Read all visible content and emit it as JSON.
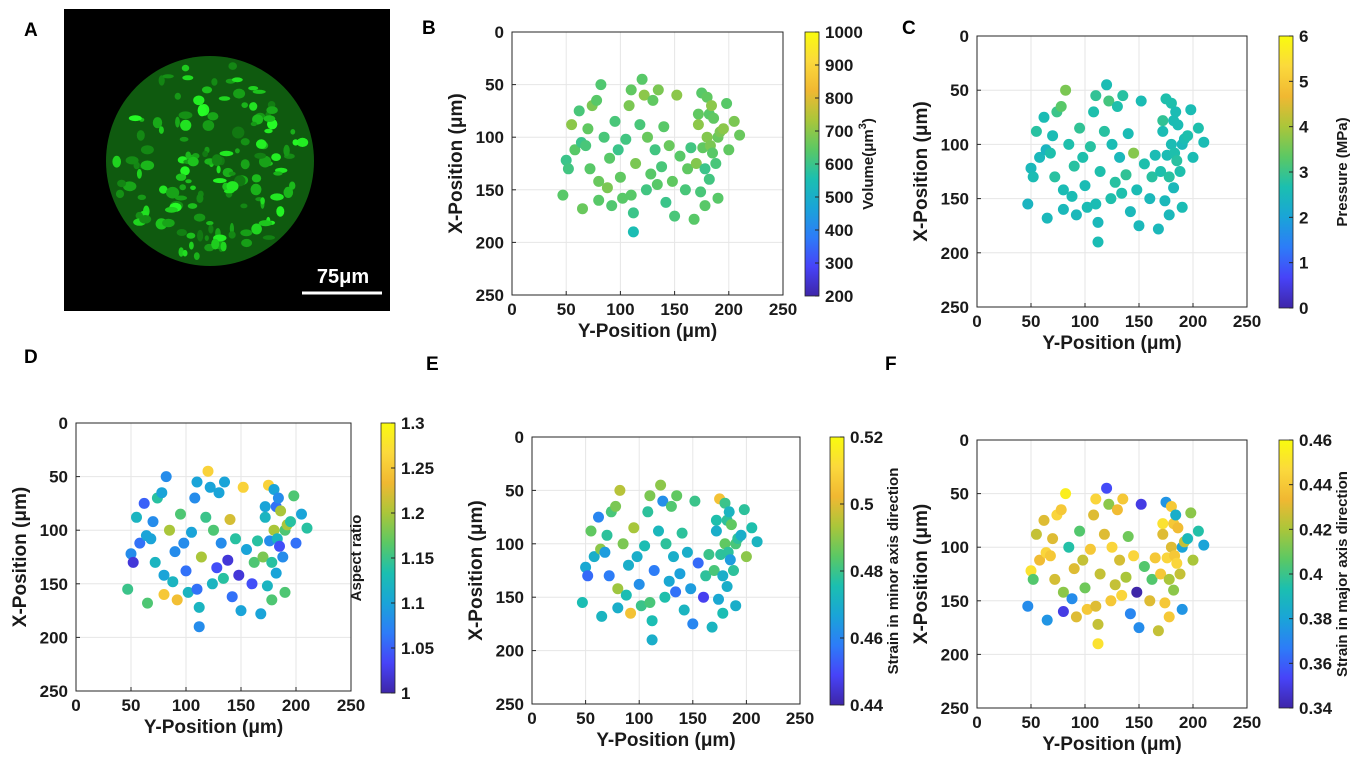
{
  "panel_labels": {
    "A": "A",
    "B": "B",
    "C": "C",
    "D": "D",
    "E": "E",
    "F": "F"
  },
  "micrograph": {
    "scale_bar_label": "75μm",
    "background": "#000000",
    "cell_color": "#22e022"
  },
  "colormap": [
    "#3e26a8",
    "#4743f8",
    "#2d7cf8",
    "#1aa4d8",
    "#1bbfb0",
    "#5bc864",
    "#aac63a",
    "#f0b832",
    "#fbd93c",
    "#f9fb0e"
  ],
  "cell_positions": {
    "y": [
      47,
      50,
      52,
      55,
      58,
      62,
      64,
      65,
      68,
      70,
      72,
      74,
      78,
      80,
      80,
      82,
      85,
      88,
      90,
      92,
      95,
      98,
      100,
      102,
      105,
      108,
      110,
      110,
      112,
      112,
      114,
      118,
      120,
      122,
      124,
      125,
      128,
      130,
      132,
      134,
      135,
      138,
      140,
      142,
      145,
      148,
      150,
      152,
      155,
      160,
      162,
      165,
      168,
      170,
      172,
      172,
      174,
      175,
      176,
      178,
      178,
      180,
      180,
      182,
      182,
      183,
      184,
      185,
      186,
      188,
      190,
      190,
      192,
      195,
      198,
      200,
      205,
      210
    ],
    "x": [
      155,
      122,
      130,
      88,
      112,
      75,
      105,
      168,
      108,
      92,
      130,
      70,
      65,
      142,
      160,
      50,
      100,
      148,
      120,
      165,
      85,
      112,
      138,
      158,
      102,
      70,
      55,
      155,
      172,
      190,
      125,
      88,
      45,
      60,
      150,
      100,
      135,
      65,
      112,
      145,
      55,
      128,
      90,
      162,
      108,
      142,
      175,
      60,
      118,
      150,
      130,
      110,
      178,
      125,
      78,
      88,
      152,
      58,
      110,
      130,
      165,
      62,
      100,
      78,
      140,
      108,
      70,
      115,
      82,
      125,
      100,
      158,
      95,
      92,
      68,
      112,
      85,
      98
    ]
  },
  "chart_data": [
    {
      "type": "scatter",
      "panel": "B",
      "xlabel": "Y-Position (μm)",
      "ylabel": "X-Position (μm)",
      "xlim": [
        0,
        250
      ],
      "ylim": [
        250,
        0
      ],
      "xticks": [
        "0",
        "50",
        "100",
        "150",
        "200",
        "250"
      ],
      "yticks": [
        "0",
        "50",
        "100",
        "150",
        "200",
        "250"
      ],
      "colorbar": {
        "label": "Volume(μm3)",
        "min": 200,
        "max": 1000,
        "ticks": [
          "200",
          "300",
          "400",
          "500",
          "600",
          "700",
          "800",
          "900",
          "1000"
        ]
      },
      "color_values": [
        640,
        600,
        610,
        700,
        640,
        620,
        600,
        660,
        620,
        650,
        640,
        680,
        640,
        660,
        640,
        630,
        620,
        680,
        640,
        630,
        620,
        600,
        650,
        640,
        610,
        680,
        650,
        640,
        600,
        550,
        680,
        620,
        640,
        700,
        610,
        660,
        640,
        650,
        610,
        640,
        680,
        620,
        640,
        600,
        660,
        650,
        620,
        700,
        640,
        620,
        650,
        610,
        640,
        690,
        650,
        700,
        620,
        640,
        650,
        600,
        640,
        650,
        690,
        640,
        610,
        680,
        700,
        640,
        650,
        620,
        660,
        640,
        680,
        700,
        640,
        650,
        680,
        660
      ]
    },
    {
      "type": "scatter",
      "panel": "C",
      "xlabel": "Y-Position (μm)",
      "ylabel": "X-Position (μm)",
      "xlim": [
        0,
        250
      ],
      "ylim": [
        250,
        0
      ],
      "xticks": [
        "0",
        "50",
        "100",
        "150",
        "200",
        "250"
      ],
      "yticks": [
        "0",
        "50",
        "100",
        "150",
        "200",
        "250"
      ],
      "colorbar": {
        "label": "Pressure (MPa)",
        "min": 0,
        "max": 6,
        "ticks": [
          "0",
          "1",
          "2",
          "3",
          "4",
          "5",
          "6"
        ]
      },
      "color_values": [
        2.4,
        2.5,
        2.6,
        2.8,
        2.5,
        2.6,
        2.4,
        2.5,
        2.7,
        2.6,
        2.8,
        3.0,
        3.3,
        2.6,
        2.5,
        3.6,
        2.7,
        2.6,
        2.8,
        2.5,
        2.9,
        2.7,
        2.6,
        2.6,
        2.8,
        2.7,
        2.9,
        2.6,
        2.5,
        2.6,
        2.7,
        2.8,
        2.6,
        3.1,
        2.7,
        2.6,
        2.8,
        2.7,
        2.5,
        2.7,
        2.8,
        2.9,
        2.6,
        2.5,
        3.7,
        2.6,
        2.5,
        2.6,
        2.7,
        2.5,
        2.8,
        2.6,
        2.5,
        2.7,
        2.9,
        2.6,
        2.5,
        2.7,
        2.6,
        2.8,
        2.5,
        2.7,
        2.6,
        2.6,
        2.5,
        2.7,
        2.6,
        2.8,
        2.6,
        2.7,
        2.5,
        2.6,
        2.6,
        2.7,
        2.6,
        2.6,
        2.7,
        2.6
      ]
    },
    {
      "type": "scatter",
      "panel": "D",
      "xlabel": "Y-Position (μm)",
      "ylabel": "X-Position (μm)",
      "xlim": [
        0,
        250
      ],
      "ylim": [
        250,
        0
      ],
      "xticks": [
        "0",
        "50",
        "100",
        "150",
        "200",
        "250"
      ],
      "yticks": [
        "0",
        "50",
        "100",
        "150",
        "200",
        "250"
      ],
      "colorbar": {
        "label": "Aspect ratio",
        "min": 1,
        "max": 1.3,
        "ticks": [
          "1",
          "1.05",
          "1.1",
          "1.15",
          "1.2",
          "1.25",
          "1.3"
        ]
      },
      "color_values": [
        1.15,
        1.08,
        1.02,
        1.12,
        1.06,
        1.05,
        1.1,
        1.16,
        1.1,
        1.08,
        1.12,
        1.14,
        1.1,
        1.1,
        1.25,
        1.08,
        1.2,
        1.12,
        1.08,
        1.24,
        1.16,
        1.08,
        1.06,
        1.12,
        1.1,
        1.08,
        1.1,
        1.06,
        1.12,
        1.08,
        1.2,
        1.15,
        1.26,
        1.1,
        1.12,
        1.16,
        1.04,
        1.1,
        1.08,
        1.14,
        1.1,
        1.02,
        1.22,
        1.06,
        1.14,
        1.02,
        1.1,
        1.26,
        1.1,
        1.04,
        1.16,
        1.14,
        1.1,
        1.18,
        1.1,
        1.12,
        1.12,
        1.26,
        1.08,
        1.14,
        1.16,
        1.1,
        1.2,
        1.06,
        1.1,
        1.12,
        1.08,
        1.04,
        1.2,
        1.08,
        1.16,
        1.16,
        1.2,
        1.14,
        1.16,
        1.06,
        1.1,
        1.14
      ]
    },
    {
      "type": "scatter",
      "panel": "E",
      "xlabel": "Y-Position (μm)",
      "ylabel": "X-Position (μm)",
      "xlim": [
        0,
        250
      ],
      "ylim": [
        250,
        0
      ],
      "xticks": [
        "0",
        "50",
        "100",
        "150",
        "200",
        "250"
      ],
      "yticks": [
        "0",
        "50",
        "100",
        "150",
        "200",
        "250"
      ],
      "colorbar": {
        "label": "Strain in minor axis direction",
        "min": 0.44,
        "max": 0.52,
        "ticks": [
          "0.44",
          "0.46",
          "0.48",
          "0.5",
          "0.52"
        ]
      },
      "color_values": [
        0.475,
        0.468,
        0.455,
        0.485,
        0.47,
        0.46,
        0.49,
        0.472,
        0.465,
        0.478,
        0.458,
        0.482,
        0.488,
        0.492,
        0.47,
        0.495,
        0.488,
        0.475,
        0.47,
        0.505,
        0.493,
        0.47,
        0.462,
        0.48,
        0.475,
        0.478,
        0.488,
        0.482,
        0.475,
        0.47,
        0.458,
        0.473,
        0.49,
        0.462,
        0.476,
        0.478,
        0.468,
        0.483,
        0.47,
        0.456,
        0.485,
        0.466,
        0.478,
        0.472,
        0.47,
        0.465,
        0.46,
        0.48,
        0.455,
        0.448,
        0.478,
        0.48,
        0.472,
        0.482,
        0.476,
        0.47,
        0.468,
        0.505,
        0.478,
        0.47,
        0.475,
        0.48,
        0.485,
        0.478,
        0.47,
        0.478,
        0.472,
        0.465,
        0.485,
        0.478,
        0.482,
        0.47,
        0.478,
        0.47,
        0.478,
        0.49,
        0.476,
        0.472
      ]
    },
    {
      "type": "scatter",
      "panel": "F",
      "xlabel": "Y-Position (μm)",
      "ylabel": "X-Position (μm)",
      "xlim": [
        0,
        250
      ],
      "ylim": [
        250,
        0
      ],
      "xticks": [
        "0",
        "50",
        "100",
        "150",
        "200",
        "250"
      ],
      "yticks": [
        "0",
        "50",
        "100",
        "150",
        "200",
        "250"
      ],
      "colorbar": {
        "label": "Strain in major axis direction",
        "min": 0.34,
        "max": 0.46,
        "ticks": [
          "0.34",
          "0.36",
          "0.38",
          "0.4",
          "0.42",
          "0.44",
          "0.46"
        ]
      },
      "color_values": [
        0.372,
        0.45,
        0.405,
        0.425,
        0.435,
        0.43,
        0.445,
        0.375,
        0.44,
        0.43,
        0.428,
        0.445,
        0.44,
        0.415,
        0.35,
        0.455,
        0.395,
        0.372,
        0.43,
        0.43,
        0.405,
        0.425,
        0.41,
        0.44,
        0.44,
        0.43,
        0.445,
        0.43,
        0.425,
        0.45,
        0.425,
        0.43,
        0.355,
        0.415,
        0.44,
        0.445,
        0.425,
        0.435,
        0.428,
        0.445,
        0.44,
        0.42,
        0.41,
        0.37,
        0.445,
        0.34,
        0.372,
        0.35,
        0.405,
        0.43,
        0.405,
        0.44,
        0.425,
        0.44,
        0.45,
        0.43,
        0.44,
        0.375,
        0.445,
        0.42,
        0.44,
        0.44,
        0.43,
        0.44,
        0.415,
        0.44,
        0.385,
        0.445,
        0.435,
        0.425,
        0.38,
        0.375,
        0.425,
        0.39,
        0.415,
        0.42,
        0.395,
        0.38
      ]
    }
  ]
}
